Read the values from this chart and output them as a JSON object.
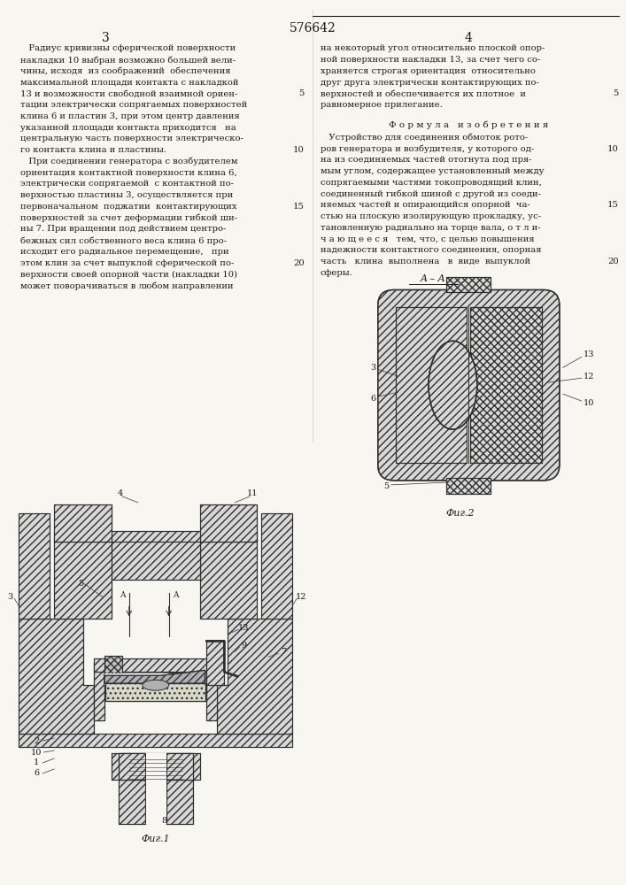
{
  "patent_number": "576642",
  "page_numbers": [
    "3",
    "4"
  ],
  "background_color": "#f8f6f0",
  "text_color": "#1a1a1a",
  "left_column_text": [
    "   Радиус кривизны сферической поверхности",
    "накладки 10 выбран возможно большей вели-",
    "чины, исходя  из соображений  обеспечения",
    "максимальной площади контакта с накладкой",
    "13 и возможности свободной взаимной ориен-",
    "тации электрически сопрягаемых поверхностей",
    "клина 6 и пластин 3, при этом центр давления",
    "указанной площади контакта приходится   на",
    "центральную часть поверхности электрическо-",
    "го контакта клина и пластины.",
    "   При соединении генератора с возбудителем",
    "ориентация контактной поверхности клина 6,",
    "электрически сопрягаемой  с контактной по-",
    "верхностью пластины 3, осуществляется при",
    "первоначальном  поджатии  контактирующих",
    "поверхностей за счет деформации гибкой ши-",
    "ны 7. При вращении под действием центро-",
    "бежных сил собственного веса клина 6 про-",
    "исходит его радиальное перемещение,   при",
    "этом клин за счет выпуклой сферической по-",
    "верхности своей опорной части (накладки 10)",
    "может поворачиваться в любом направлении"
  ],
  "right_column_text": [
    "на некоторый угол относительно плоской опор-",
    "ной поверхности накладки 13, за счет чего со-",
    "храняется строгая ориентация  относительно",
    "друг друга электрически контактирующих по-",
    "верхностей и обеспечивается их плотное  и",
    "равномерное прилегание."
  ],
  "formula_title": "Ф о р м у л а   и з о б р е т е н и я",
  "formula_text": [
    "   Устройство для соединения обмоток рото-",
    "ров генератора и возбудителя, у которого од-",
    "на из соединяемых частей отогнута под пря-",
    "мым углом, содержащее установленный между",
    "сопрягаемыми частями токопроводящий клин,",
    "соединенный гибкой шиной с другой из соеди-",
    "няемых частей и опирающийся опорной  ча-",
    "стью на плоскую изолирующую прокладку, ус-",
    "тановленную радиально на торце вала, о т л и-",
    "ч а ю щ е е с я   тем, что, с целью повышения",
    "надежности контактного соединения, опорная",
    "часть   клина  выполнена   в  виде  выпуклой",
    "сферы."
  ],
  "line_numbers_left": [
    "5",
    "10",
    "15",
    "20"
  ],
  "fig1_label": "Фиг.1",
  "fig2_label": "Фиг.2",
  "aa_label": "A – A"
}
